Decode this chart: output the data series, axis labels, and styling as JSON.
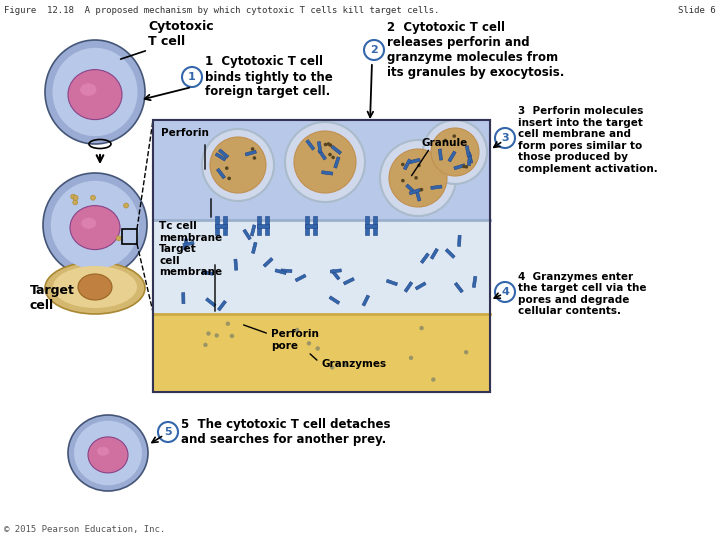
{
  "title": "Figure  12.18  A proposed mechanism by which cytotoxic T cells kill target cells.",
  "slide": "Slide 6",
  "copyright": "© 2015 Pearson Education, Inc.",
  "bg_color": "#ffffff",
  "fig_width": 7.2,
  "fig_height": 5.4,
  "annotations": {
    "cytotoxic_label": "Cytotoxic\nT cell",
    "target_label": "Target\ncell",
    "step1": "1  Cytotoxic T cell\nbinds tightly to the\nforeign target cell.",
    "step2": "2  Cytotoxic T cell\nreleases perforin and\ngranzyme molecules from\nits granules by exocytosis.",
    "step3": "3  Perforin molecules\ninsert into the target\ncell membrane and\nform pores similar to\nthose produced by\ncomplement activation.",
    "step4": "4  Granzymes enter\nthe target cell via the\npores and degrade\ncellular contents.",
    "step5": "5  The cytotoxic T cell detaches\nand searches for another prey.",
    "perforin_label": "Perforin",
    "tc_membrane_label": "Tᴄ cell\nmembrane",
    "target_membrane_label": "Target\ncell\nmembrane",
    "perforin_pore_label": "Perforin\npore",
    "granzymes_label": "Granzymes",
    "granule_label": "Granule"
  },
  "colors": {
    "cell_outer": "#9bacd4",
    "cell_inner": "#b8c8e8",
    "nucleus": "#d070a0",
    "nucleus_shine": "#e890c0",
    "target_cell_outer": "#d4b870",
    "target_cell_inner": "#e8d090",
    "box_fill": "#aabbd8",
    "step_circle_border": "#3366aa",
    "granule_fill": "#c8a060",
    "rod_color": "#3366aa",
    "target_membrane": "#e8c860"
  }
}
